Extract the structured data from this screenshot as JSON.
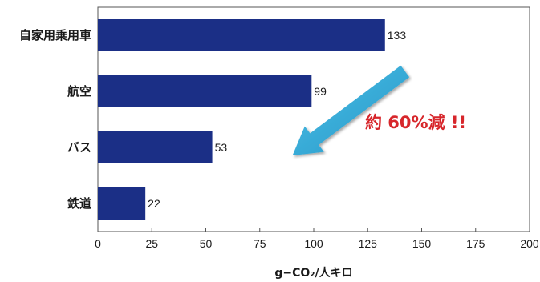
{
  "chart_data": {
    "type": "bar",
    "orientation": "horizontal",
    "categories": [
      "自家用乗用車",
      "航空",
      "バス",
      "鉄道"
    ],
    "values": [
      133,
      99,
      53,
      22
    ],
    "xlabel": "g−CO₂/人キロ",
    "ylabel": "",
    "title": "",
    "xlim": [
      0,
      200
    ],
    "xticks": [
      "0",
      "25",
      "50",
      "75",
      "100",
      "125",
      "150",
      "175",
      "200"
    ],
    "grid": false,
    "legend": "none",
    "bar_color": "#1b2f86",
    "annotation": {
      "text": "約 60%減 !!",
      "color": "#d7262b",
      "arrow_color": "#2fa7d2",
      "from_value": 133,
      "to_value": 53
    }
  }
}
